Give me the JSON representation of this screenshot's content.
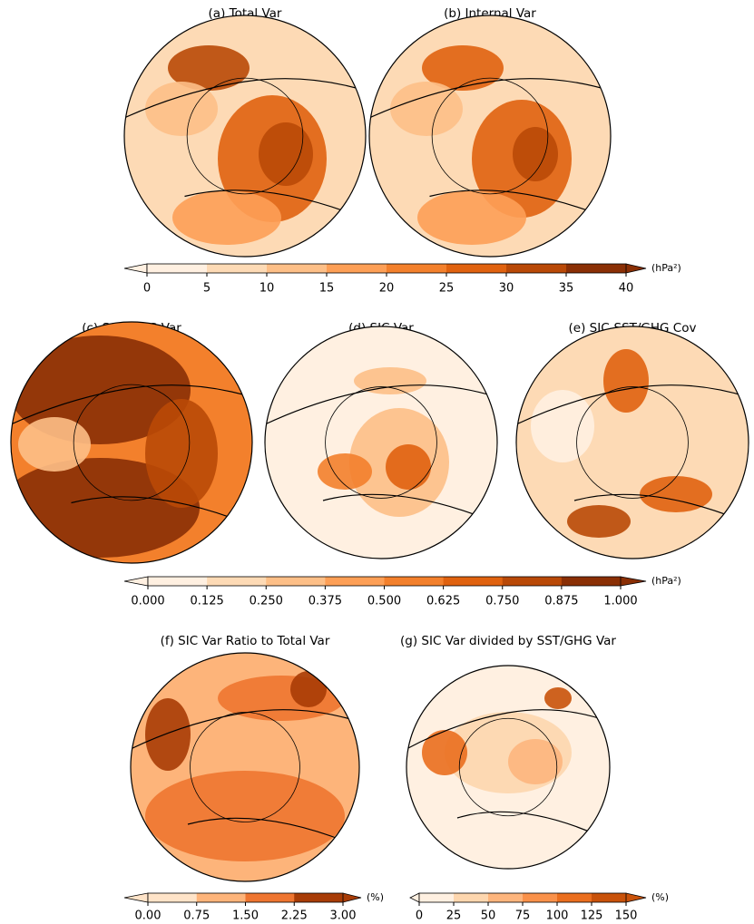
{
  "panels": [
    {
      "title": "(a) Total Var"
    },
    {
      "title": "(b) Internal Var"
    },
    {
      "title": "(c) SST/GHG Var"
    },
    {
      "title": "(d) SIC Var"
    },
    {
      "title": "(e) SIC-SST/GHG Cov"
    },
    {
      "title": "(f) SIC Var Ratio to Total Var"
    },
    {
      "title": "(g) SIC Var divided by SST/GHG Var"
    }
  ],
  "colorbars": [
    {
      "unit": "(hPa²)",
      "ticks": [
        0,
        5,
        10,
        15,
        20,
        25,
        30,
        35,
        40
      ],
      "colors": [
        "#fff0e1",
        "#fddab5",
        "#fdbf87",
        "#fd9f56",
        "#f3802c",
        "#e0620f",
        "#b94907",
        "#8a2f05"
      ]
    },
    {
      "unit": "(hPa²)",
      "ticks": [
        {
          "value": 0,
          "label": "0.000"
        },
        0.125,
        {
          "value": 0.25,
          "label": "0.250"
        },
        0.375,
        {
          "value": 0.5,
          "label": "0.500"
        },
        0.625,
        {
          "value": 0.75,
          "label": "0.750"
        },
        0.875,
        {
          "value": 1,
          "label": "1.000"
        }
      ],
      "colors": [
        "#fff0e1",
        "#fddab5",
        "#fdbf87",
        "#fd9f56",
        "#f3802c",
        "#e0620f",
        "#b94907",
        "#8a2f05"
      ]
    },
    {
      "unit": "(%)",
      "ticks": [
        {
          "value": 0,
          "label": "0.00"
        },
        0.75,
        {
          "value": 1.5,
          "label": "1.50"
        },
        2.25,
        {
          "value": 3,
          "label": "3.00"
        }
      ],
      "colors": [
        "#fee3c8",
        "#fdb47a",
        "#ee7530",
        "#a83c06"
      ]
    },
    {
      "unit": "(%)",
      "ticks": [
        0,
        25,
        50,
        75,
        100,
        125,
        150
      ],
      "colors": [
        "#fff0e1",
        "#fdd6ae",
        "#fdb57d",
        "#f9914a",
        "#ea6e1e",
        "#c9520a"
      ]
    }
  ]
}
